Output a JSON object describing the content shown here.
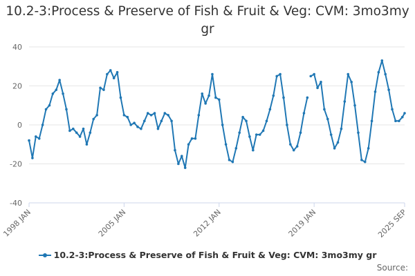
{
  "title": "10.2-3:Process & Preserve of Fish & Fruit & Veg: CVM: 3mo3my gr",
  "source_label": "Source:",
  "chart_data": {
    "type": "line",
    "title": "10.2-3:Process & Preserve of Fish & Fruit & Veg: CVM: 3mo3my gr",
    "xlabel": "",
    "ylabel": "",
    "ylim": [
      -40,
      40
    ],
    "yticks": [
      -40,
      -20,
      0,
      20,
      40
    ],
    "x_range": [
      "1998 JAN",
      "2025 SEP"
    ],
    "xtick_labels": [
      "1998 JAN",
      "2005 JAN",
      "2012 JAN",
      "2019 JAN",
      "2025 SEP"
    ],
    "grid": true,
    "legend_position": "bottom",
    "series": [
      {
        "name": "10.2-3:Process & Preserve of Fish & Fruit & Veg: CVM: 3mo3my gr",
        "color": "#1f77b4",
        "points": [
          [
            "1998-01",
            -8
          ],
          [
            "1998-04",
            -17
          ],
          [
            "1998-07",
            -6
          ],
          [
            "1998-10",
            -7
          ],
          [
            "1999-01",
            0
          ],
          [
            "1999-04",
            8
          ],
          [
            "1999-07",
            10
          ],
          [
            "1999-10",
            16
          ],
          [
            "2000-01",
            18
          ],
          [
            "2000-04",
            23
          ],
          [
            "2000-07",
            16
          ],
          [
            "2000-10",
            8
          ],
          [
            "2001-01",
            -3
          ],
          [
            "2001-04",
            -2
          ],
          [
            "2001-07",
            -4
          ],
          [
            "2001-10",
            -6
          ],
          [
            "2002-01",
            -2
          ],
          [
            "2002-04",
            -10
          ],
          [
            "2002-07",
            -4
          ],
          [
            "2002-10",
            3
          ],
          [
            "2003-01",
            5
          ],
          [
            "2003-04",
            19
          ],
          [
            "2003-07",
            18
          ],
          [
            "2003-10",
            26
          ],
          [
            "2004-01",
            28
          ],
          [
            "2004-04",
            24
          ],
          [
            "2004-07",
            27
          ],
          [
            "2004-10",
            14
          ],
          [
            "2005-01",
            5
          ],
          [
            "2005-04",
            4
          ],
          [
            "2005-07",
            0
          ],
          [
            "2005-10",
            1
          ],
          [
            "2006-01",
            -1
          ],
          [
            "2006-04",
            -2
          ],
          [
            "2006-07",
            2
          ],
          [
            "2006-10",
            6
          ],
          [
            "2007-01",
            5
          ],
          [
            "2007-04",
            6
          ],
          [
            "2007-07",
            -2
          ],
          [
            "2007-10",
            2
          ],
          [
            "2008-01",
            6
          ],
          [
            "2008-04",
            5
          ],
          [
            "2008-07",
            2
          ],
          [
            "2008-10",
            -13
          ],
          [
            "2009-01",
            -20
          ],
          [
            "2009-04",
            -16
          ],
          [
            "2009-07",
            -22
          ],
          [
            "2009-10",
            -10
          ],
          [
            "2010-01",
            -7
          ],
          [
            "2010-04",
            -7
          ],
          [
            "2010-07",
            5
          ],
          [
            "2010-10",
            16
          ],
          [
            "2011-01",
            11
          ],
          [
            "2011-04",
            15
          ],
          [
            "2011-07",
            26
          ],
          [
            "2011-10",
            14
          ],
          [
            "2012-01",
            13
          ],
          [
            "2012-04",
            0
          ],
          [
            "2012-07",
            -10
          ],
          [
            "2012-10",
            -18
          ],
          [
            "2013-01",
            -19
          ],
          [
            "2013-04",
            -12
          ],
          [
            "2013-07",
            -4
          ],
          [
            "2013-10",
            4
          ],
          [
            "2014-01",
            2
          ],
          [
            "2014-04",
            -6
          ],
          [
            "2014-07",
            -13
          ],
          [
            "2014-10",
            -5
          ],
          [
            "2015-01",
            -5
          ],
          [
            "2015-04",
            -3
          ],
          [
            "2015-07",
            2
          ],
          [
            "2015-10",
            8
          ],
          [
            "2016-01",
            15
          ],
          [
            "2016-04",
            25
          ],
          [
            "2016-07",
            26
          ],
          [
            "2016-10",
            14
          ],
          [
            "2017-01",
            0
          ],
          [
            "2017-04",
            -10
          ],
          [
            "2017-07",
            -13
          ],
          [
            "2017-10",
            -11
          ],
          [
            "2018-01",
            -4
          ],
          [
            "2018-04",
            6
          ],
          [
            "2018-07",
            14
          ],
          [
            "2018-10",
            25
          ],
          [
            "2019-01",
            26
          ],
          [
            "2019-04",
            19
          ],
          [
            "2019-07",
            22
          ],
          [
            "2019-10",
            8
          ],
          [
            "2020-01",
            3
          ],
          [
            "2020-04",
            -5
          ],
          [
            "2020-07",
            -12
          ],
          [
            "2020-10",
            -9
          ],
          [
            "2021-01",
            -2
          ],
          [
            "2021-04",
            12
          ],
          [
            "2021-07",
            26
          ],
          [
            "2021-10",
            22
          ],
          [
            "2022-01",
            10
          ],
          [
            "2022-04",
            -4
          ],
          [
            "2022-07",
            -18
          ],
          [
            "2022-10",
            -19
          ],
          [
            "2023-01",
            -12
          ],
          [
            "2023-04",
            2
          ],
          [
            "2023-07",
            17
          ],
          [
            "2023-10",
            27
          ],
          [
            "2024-01",
            33
          ],
          [
            "2024-04",
            26
          ],
          [
            "2024-07",
            18
          ],
          [
            "2024-10",
            8
          ],
          [
            "2025-01",
            2
          ],
          [
            "2025-04",
            2
          ],
          [
            "2025-07",
            4
          ],
          [
            "2025-09",
            6
          ]
        ],
        "gaps_after": [
          "2018-07"
        ]
      }
    ]
  }
}
